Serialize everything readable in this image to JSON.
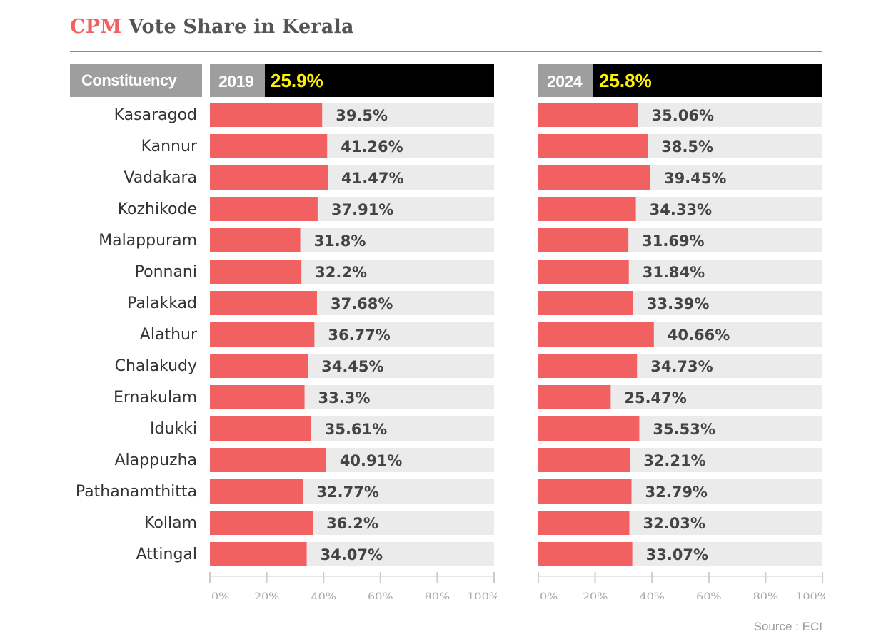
{
  "title": {
    "accent": "CPM",
    "rest": "Vote Share in Kerala"
  },
  "header": {
    "constituency_label": "Constituency"
  },
  "source": "Source : ECI",
  "colors": {
    "bar": "#f26161",
    "track": "#ebebeb",
    "accent": "#f26161",
    "total_text": "#fff200"
  },
  "chart_data": {
    "type": "bar",
    "orientation": "horizontal",
    "categories": [
      "Kasaragod",
      "Kannur",
      "Vadakara",
      "Kozhikode",
      "Malappuram",
      "Ponnani",
      "Palakkad",
      "Alathur",
      "Chalakudy",
      "Ernakulam",
      "Idukki",
      "Alappuzha",
      "Pathanamthitta",
      "Kollam",
      "Attingal"
    ],
    "xlim": [
      0,
      100
    ],
    "ticks": [
      "0%",
      "20%",
      "40%",
      "60%",
      "80%",
      "100%"
    ],
    "series": [
      {
        "name": "2019",
        "total": "25.9%",
        "values": [
          39.5,
          41.26,
          41.47,
          37.91,
          31.8,
          32.2,
          37.68,
          36.77,
          34.45,
          33.3,
          35.61,
          40.91,
          32.77,
          36.2,
          34.07
        ],
        "labels": [
          "39.5%",
          "41.26%",
          "41.47%",
          "37.91%",
          "31.8%",
          "32.2%",
          "37.68%",
          "36.77%",
          "34.45%",
          "33.3%",
          "35.61%",
          "40.91%",
          "32.77%",
          "36.2%",
          "34.07%"
        ]
      },
      {
        "name": "2024",
        "total": "25.8%",
        "values": [
          35.06,
          38.5,
          39.45,
          34.33,
          31.69,
          31.84,
          33.39,
          40.66,
          34.73,
          25.47,
          35.53,
          32.21,
          32.79,
          32.03,
          33.07
        ],
        "labels": [
          "35.06%",
          "38.5%",
          "39.45%",
          "34.33%",
          "31.69%",
          "31.84%",
          "33.39%",
          "40.66%",
          "34.73%",
          "25.47%",
          "35.53%",
          "32.21%",
          "32.79%",
          "32.03%",
          "33.07%"
        ]
      }
    ]
  }
}
